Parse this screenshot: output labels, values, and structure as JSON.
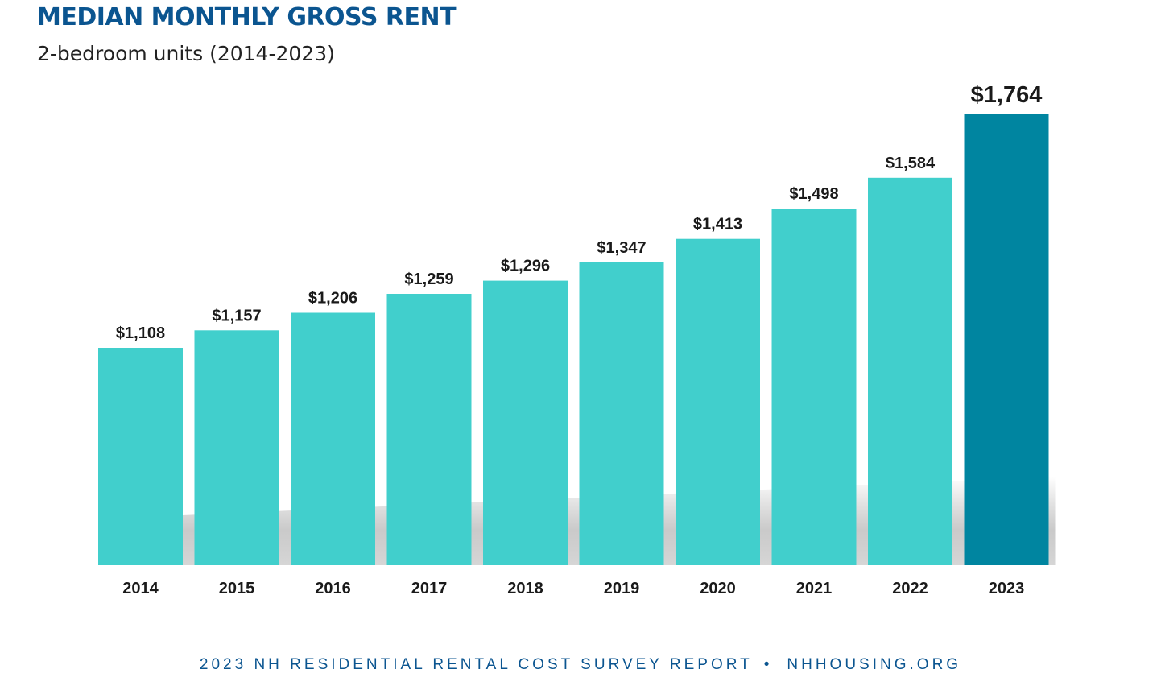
{
  "title": "MEDIAN MONTHLY GROSS RENT",
  "subtitle": "2-bedroom units  (2014-2023)",
  "footer": {
    "left": "2023 NH RESIDENTIAL RENTAL COST SURVEY REPORT",
    "separator": "•",
    "right": "NHHOUSING.ORG"
  },
  "colors": {
    "title": "#0b5590",
    "bar": "#41cfcc",
    "highlight_bar": "#0085a0",
    "label": "#1a1a1a"
  },
  "chart_data": {
    "type": "bar",
    "title": "MEDIAN MONTHLY GROSS RENT",
    "subtitle": "2-bedroom units  (2014-2023)",
    "xlabel": "",
    "ylabel": "",
    "categories": [
      "2014",
      "2015",
      "2016",
      "2017",
      "2018",
      "2019",
      "2020",
      "2021",
      "2022",
      "2023"
    ],
    "values": [
      1108,
      1157,
      1206,
      1259,
      1296,
      1347,
      1413,
      1498,
      1584,
      1764
    ],
    "data_labels": [
      "$1,108",
      "$1,157",
      "$1,206",
      "$1,259",
      "$1,296",
      "$1,347",
      "$1,413",
      "$1,498",
      "$1,584",
      "$1,764"
    ],
    "highlight_category": "2023",
    "grid": false,
    "legend": "none"
  }
}
